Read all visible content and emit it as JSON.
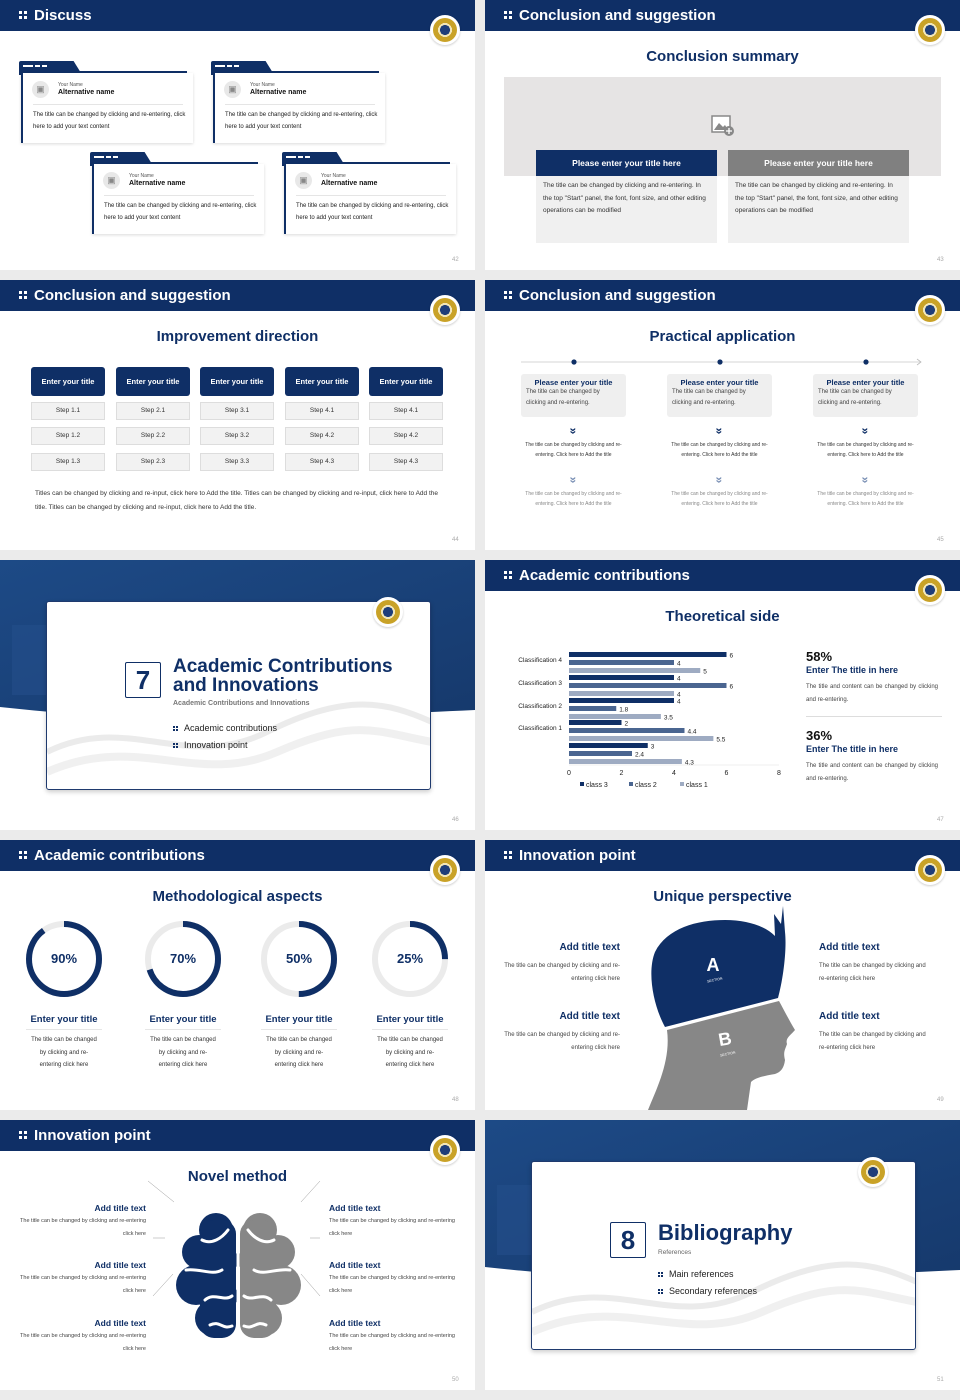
{
  "colors": {
    "navy": "#0f2f66",
    "mid_blue": "#4a6590",
    "light_blue": "#9eabc2",
    "grey": "#878787",
    "gold": "#c9a227"
  },
  "s42": {
    "number": "42",
    "header": "Discuss",
    "cards": [
      {
        "label": "Your Name",
        "name": "Alternative name",
        "text": "The title can be changed by clicking and re-entering, click here to add your text content"
      },
      {
        "label": "Your Name",
        "name": "Alternative name",
        "text": "The title can be changed by clicking and re-entering, click here to add your text content"
      },
      {
        "label": "Your Name",
        "name": "Alternative name",
        "text": "The title can be changed by clicking and re-entering, click here to add your text content"
      },
      {
        "label": "Your Name",
        "name": "Alternative name",
        "text": "The title can be changed by clicking and re-entering, click here to add your text content"
      }
    ]
  },
  "s43": {
    "number": "43",
    "header": "Conclusion and suggestion",
    "subtitle": "Conclusion summary",
    "panels": [
      {
        "title": "Please enter your title here",
        "text": "The title can be changed by clicking and re-entering. In the top \"Start\" panel, the font, font size, and other editing operations can be modified"
      },
      {
        "title": "Please enter your title here",
        "text": "The title can be changed by clicking and re-entering. In the top \"Start\" panel, the font, font size, and other editing operations can be modified"
      }
    ]
  },
  "s44": {
    "number": "44",
    "header": "Conclusion and suggestion",
    "subtitle": "Improvement direction",
    "columns": [
      {
        "title": "Enter your title",
        "steps": [
          "Step 1.1",
          "Step 1.2",
          "Step 1.3"
        ]
      },
      {
        "title": "Enter your title",
        "steps": [
          "Step 2.1",
          "Step 2.2",
          "Step 2.3"
        ]
      },
      {
        "title": "Enter your title",
        "steps": [
          "Step 3.1",
          "Step 3.2",
          "Step 3.3"
        ]
      },
      {
        "title": "Enter your title",
        "steps": [
          "Step 4.1",
          "Step 4.2",
          "Step 4.3"
        ]
      },
      {
        "title": "Enter your title",
        "steps": [
          "Step 4.1",
          "Step 4.2",
          "Step 4.3"
        ]
      }
    ],
    "paragraph": "Titles can be changed by clicking and re-input, click here to Add the title. Titles can be changed by clicking and re-input, click here to Add the title. Titles can be changed by clicking and re-input, click here to Add the title."
  },
  "s45": {
    "number": "45",
    "header": "Conclusion and suggestion",
    "subtitle": "Practical application",
    "items": [
      {
        "title": "Please enter your title",
        "text": "The title can be changed by clicking and re-entering.",
        "detail1": "The title can be changed by clicking and re-entering. Click here to Add the title",
        "detail2": "The title can be changed by clicking and re-entering. Click here to Add the title"
      },
      {
        "title": "Please enter your title",
        "text": "The title can be changed by clicking and re-entering.",
        "detail1": "The title can be changed by clicking and re-entering. Click here to Add the title",
        "detail2": "The title can be changed by clicking and re-entering. Click here to Add the title"
      },
      {
        "title": "Please enter your title",
        "text": "The title can be changed by clicking and re-entering.",
        "detail1": "The title can be changed by clicking and re-entering. Click here to Add the title",
        "detail2": "The title can be changed by clicking and re-entering. Click here to Add the title"
      }
    ]
  },
  "s46": {
    "number": "46",
    "section_number": "7",
    "title_line1": "Academic Contributions",
    "title_line2": "and Innovations",
    "subtitle": "Academic Contributions and Innovations",
    "bullets": [
      "Academic contributions",
      "Innovation point"
    ]
  },
  "s47": {
    "number": "47",
    "header": "Academic contributions",
    "subtitle": "Theoretical side",
    "stats": [
      {
        "value": "58%",
        "title": "Enter The title in here",
        "text": "The title and content can be changed by clicking and re-entering."
      },
      {
        "value": "36%",
        "title": "Enter The title in here",
        "text": "The title and content can be changed by clicking and re-entering."
      }
    ]
  },
  "chart_data": {
    "type": "bar",
    "orientation": "horizontal",
    "categories": [
      "Classification 4",
      "Classification 3",
      "Classification 2",
      "Classification 1",
      ""
    ],
    "series": [
      {
        "name": "class 3",
        "color": "#0f2f66",
        "values": [
          6,
          4,
          4,
          2,
          3
        ]
      },
      {
        "name": "class 2",
        "color": "#4a6590",
        "values": [
          4,
          6,
          1.8,
          4.4,
          2.4
        ]
      },
      {
        "name": "class 1",
        "color": "#9eabc2",
        "values": [
          5,
          4,
          3.5,
          5.5,
          4.3
        ]
      }
    ],
    "xlim": [
      0,
      8
    ],
    "xticks": [
      "0",
      "2",
      "4",
      "6",
      "8"
    ],
    "grid": false,
    "legend": "bottom",
    "data_labels": true
  },
  "s48": {
    "number": "48",
    "header": "Academic contributions",
    "subtitle": "Methodological aspects",
    "rings": [
      {
        "label": "90%",
        "value": 90,
        "title": "Enter your title",
        "text": "The title can be changed by clicking and re-entering click here"
      },
      {
        "label": "70%",
        "value": 70,
        "title": "Enter your title",
        "text": "The title can be changed by clicking and re-entering click here"
      },
      {
        "label": "50%",
        "value": 50,
        "title": "Enter your title",
        "text": "The title can be changed by clicking and re-entering click here"
      },
      {
        "label": "25%",
        "value": 25,
        "title": "Enter your title",
        "text": "The title can be changed by clicking and re-entering click here"
      }
    ]
  },
  "s49": {
    "number": "49",
    "header": "Innovation point",
    "subtitle": "Unique perspective",
    "head": {
      "a_letter": "A",
      "a_caption": "SECTION",
      "b_letter": "B",
      "b_caption": "SECTION"
    },
    "blocks": [
      {
        "title": "Add title text",
        "text": "The title can be changed by clicking and re-entering click here"
      },
      {
        "title": "Add title text",
        "text": "The title can be changed by clicking and re-entering click here"
      },
      {
        "title": "Add title text",
        "text": "The title can be changed by clicking and re-entering click here"
      },
      {
        "title": "Add title text",
        "text": "The title can be changed by clicking and re-entering click here"
      }
    ]
  },
  "s50": {
    "number": "50",
    "header": "Innovation point",
    "subtitle": "Novel method",
    "blocks": [
      {
        "title": "Add title text",
        "text": "The title can be changed by clicking and re-entering click here"
      },
      {
        "title": "Add title text",
        "text": "The title can be changed by clicking and re-entering click here"
      },
      {
        "title": "Add title text",
        "text": "The title can be changed by clicking and re-entering click here"
      },
      {
        "title": "Add title text",
        "text": "The title can be changed by clicking and re-entering click here"
      },
      {
        "title": "Add title text",
        "text": "The title can be changed by clicking and re-entering click here"
      },
      {
        "title": "Add title text",
        "text": "The title can be changed by clicking and re-entering click here"
      }
    ]
  },
  "s51": {
    "number": "51",
    "section_number": "8",
    "title": "Bibliography",
    "subtitle": "References",
    "bullets": [
      "Main references",
      "Secondary references"
    ]
  }
}
